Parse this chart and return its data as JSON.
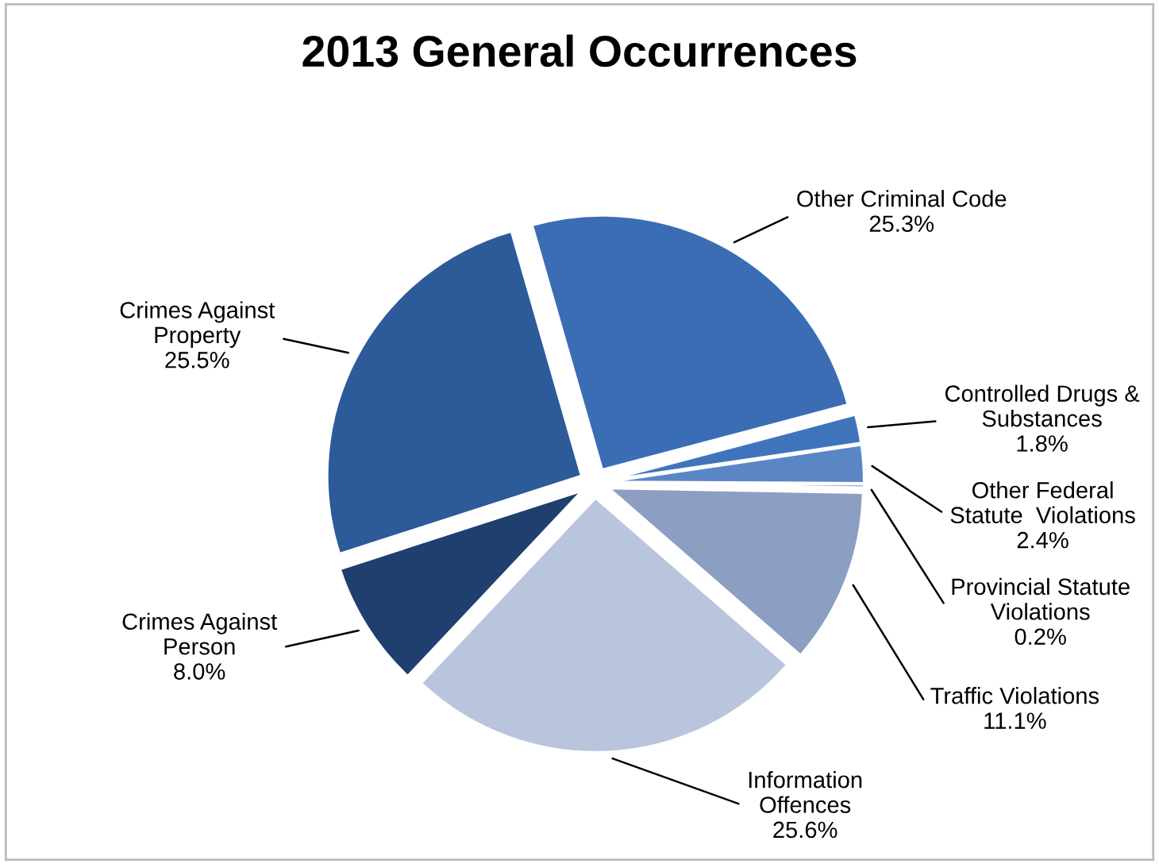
{
  "chart_data": {
    "type": "pie",
    "title": "2013 General Occurrences",
    "categories": [
      "Other Criminal Code",
      "Controlled Drugs &\nSubstances",
      "Other Federal\nStatute  Violations",
      "Provincial Statute\nViolations",
      "Traffic Violations",
      "Information\nOffences",
      "Crimes Against\nPerson",
      "Crimes Against\nProperty"
    ],
    "values": [
      25.3,
      1.8,
      2.4,
      0.2,
      11.1,
      25.6,
      8.0,
      25.5
    ],
    "value_labels": [
      "25.3%",
      "1.8%",
      "2.4%",
      "0.2%",
      "11.1%",
      "25.6%",
      "8.0%",
      "25.5%"
    ],
    "colors": [
      "#3a6db4",
      "#3f74bc",
      "#5a86c6",
      "#7f9fd0",
      "#8c9fc2",
      "#b9c5dd",
      "#1f3f6e",
      "#2d5a98"
    ],
    "legend": false
  }
}
